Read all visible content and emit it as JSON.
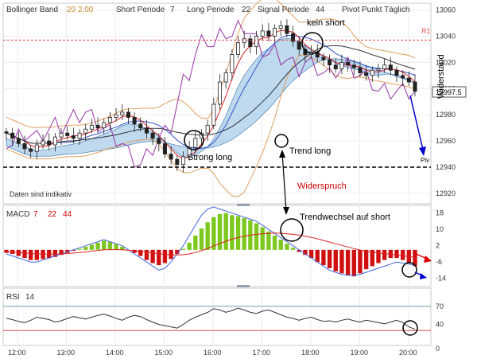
{
  "header": {
    "title": "Bollinger Band",
    "bb_params": "20  2.00",
    "short_label": "Short Periode",
    "short_val": "7",
    "long_label": "Long Periode",
    "long_val": "22",
    "signal_label": "Signal Periode",
    "signal_val": "44",
    "pivot_label": "Pivot Punkt  Täglich"
  },
  "disclaimer": "Daten sind indikativ",
  "annotations": {
    "kein_short": "kein short",
    "strong_long": "Strong long",
    "trend_long": "Trend long",
    "widerspruch": "Widerspruch",
    "trendwechsel": "Trendwechsel auf short",
    "widerstand": "Widerstand"
  },
  "levels": {
    "r1": "R1",
    "piv": "Piv",
    "last_price": "12997.5"
  },
  "macd": {
    "label": "MACD",
    "p1": "7",
    "p2": "22",
    "p3": "44"
  },
  "rsi": {
    "label": "RSI",
    "p": "14"
  },
  "colors": {
    "accent": "#cc0000",
    "macd_pos": "#7dc81e",
    "macd_neg": "#d01010",
    "cloud": "#a9cce8",
    "bb": "#e0a060"
  },
  "chart_data": [
    {
      "type": "line",
      "name": "price",
      "x_ticks": [
        "12:00",
        "13:00",
        "14:00",
        "15:00",
        "16:00",
        "17:00",
        "18:00",
        "19:00",
        "20:00"
      ],
      "y_ticks": [
        12920,
        12940,
        12960,
        12980,
        13000,
        13020,
        13040,
        13060
      ],
      "ylim": [
        12912,
        13064
      ],
      "levels": {
        "R1": 13037,
        "Piv": 12940
      },
      "last_price": 12997.5,
      "close": [
        12966,
        12962,
        12958,
        12954,
        12952,
        12957,
        12960,
        12957,
        12963,
        12966,
        12964,
        12962,
        12966,
        12969,
        12972,
        12970,
        12974,
        12978,
        12980,
        12982,
        12978,
        12973,
        12970,
        12966,
        12962,
        12958,
        12950,
        12946,
        12942,
        12948,
        12955,
        12962,
        12966,
        12972,
        12988,
        13005,
        13012,
        13026,
        13035,
        13038,
        13032,
        13040,
        13044,
        13040,
        13046,
        13048,
        13042,
        13036,
        13030,
        13026,
        13028,
        13024,
        13022,
        13018,
        13015,
        13020,
        13018,
        13016,
        13012,
        13010,
        13014,
        13015,
        13018,
        13014,
        13010,
        13008,
        13005,
        12998
      ]
    },
    {
      "type": "bar",
      "name": "MACD",
      "y_ticks": [
        18,
        10,
        2,
        -6,
        -14
      ],
      "ylim": [
        -18,
        21
      ],
      "histogram": [
        -1.5,
        -2,
        -3,
        -4,
        -5,
        -5,
        -4.5,
        -4,
        -3.5,
        -2.5,
        -1.5,
        -0.5,
        0.5,
        1.5,
        2.5,
        3.5,
        4.5,
        4,
        3,
        1.5,
        0,
        -1.5,
        -3,
        -5,
        -6.5,
        -7.5,
        -6.5,
        -4.5,
        -2,
        0.5,
        3.5,
        7,
        10.5,
        13.5,
        16,
        17.5,
        18,
        17,
        16.5,
        15.5,
        14.5,
        13,
        11,
        9,
        7,
        5,
        3,
        1,
        -1,
        -2.5,
        -4,
        -6,
        -7.5,
        -9,
        -10.5,
        -11.5,
        -12.5,
        -13,
        -11.5,
        -9.5,
        -8,
        -6.5,
        -5,
        -4,
        -4,
        -5,
        -6.5,
        -8
      ],
      "macd_line": [
        -2,
        -3,
        -4,
        -5,
        -6,
        -6,
        -5,
        -4,
        -3,
        -2,
        -1,
        0,
        1,
        2,
        3,
        4,
        5,
        4,
        3,
        2,
        0,
        -2,
        -4,
        -6,
        -8,
        -10,
        -9,
        -6,
        -2,
        2,
        7,
        12,
        17,
        20,
        21,
        20,
        19,
        18,
        17,
        16,
        15,
        14,
        12,
        10,
        8,
        6,
        4,
        2,
        0,
        -2,
        -4,
        -6,
        -8,
        -10,
        -11,
        -12,
        -12.5,
        -12.5,
        -12,
        -11,
        -10,
        -9,
        -8,
        -7,
        -6,
        -6.5,
        -7,
        -7.5
      ],
      "signal_line": [
        -1,
        -1.2,
        -1.4,
        -1.6,
        -1.8,
        -2,
        -2.1,
        -2.1,
        -2.1,
        -2,
        -1.8,
        -1.6,
        -1.3,
        -1,
        -0.7,
        -0.3,
        0,
        0.1,
        0.1,
        0,
        -0.2,
        -0.5,
        -0.8,
        -1.1,
        -1.5,
        -1.9,
        -2.2,
        -2.4,
        -2.5,
        -2.4,
        -2,
        -1.3,
        -0.4,
        0.7,
        1.9,
        3.1,
        4.2,
        5.2,
        6,
        6.7,
        7.2,
        7.6,
        7.9,
        8.1,
        8.2,
        8.1,
        7.9,
        7.6,
        7.2,
        6.7,
        6.1,
        5.4,
        4.6,
        3.8,
        3,
        2.2,
        1.4,
        0.6,
        -0.1,
        -0.7,
        -1.2,
        -1.6,
        -1.9,
        -2.2,
        -2.5,
        -2.9,
        -3.3,
        -3.7
      ]
    },
    {
      "type": "line",
      "name": "RSI",
      "y_ticks": [
        70,
        40,
        0
      ],
      "levels": [
        70,
        30
      ],
      "values": [
        50,
        48,
        45,
        43,
        47,
        52,
        50,
        48,
        44,
        46,
        50,
        53,
        51,
        49,
        52,
        55,
        57,
        54,
        50,
        47,
        52,
        55,
        53,
        48,
        44,
        40,
        38,
        36,
        34,
        40,
        47,
        52,
        56,
        60,
        66,
        64,
        60,
        63,
        67,
        64,
        60,
        58,
        62,
        64,
        60,
        56,
        52,
        50,
        47,
        50,
        52,
        48,
        45,
        46,
        44,
        47,
        49,
        46,
        44,
        47,
        45,
        43,
        41,
        44,
        47,
        43,
        36,
        32
      ]
    }
  ]
}
